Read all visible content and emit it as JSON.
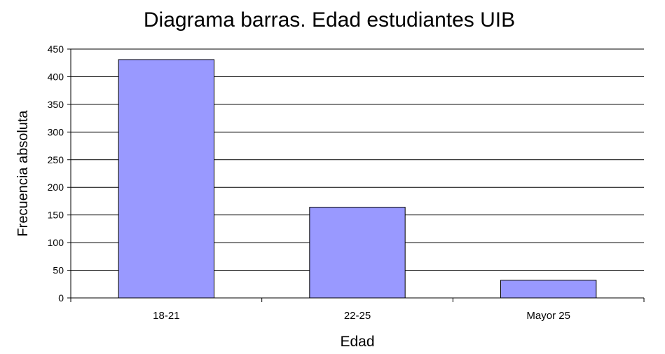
{
  "chart_data": {
    "type": "bar",
    "title": "Diagrama barras. Edad estudiantes UIB",
    "xlabel": "Edad",
    "ylabel": "Frecuencia absoluta",
    "categories": [
      "18-21",
      "22-25",
      "Mayor 25"
    ],
    "values": [
      431,
      164,
      32
    ],
    "ylim": [
      0,
      450
    ],
    "yticks": [
      0,
      50,
      100,
      150,
      200,
      250,
      300,
      350,
      400,
      450
    ],
    "grid": true,
    "legend": "none",
    "colors": {
      "bar_fill": "#9999ff",
      "bar_stroke": "#000000",
      "grid": "#000000",
      "text": "#000000"
    }
  }
}
